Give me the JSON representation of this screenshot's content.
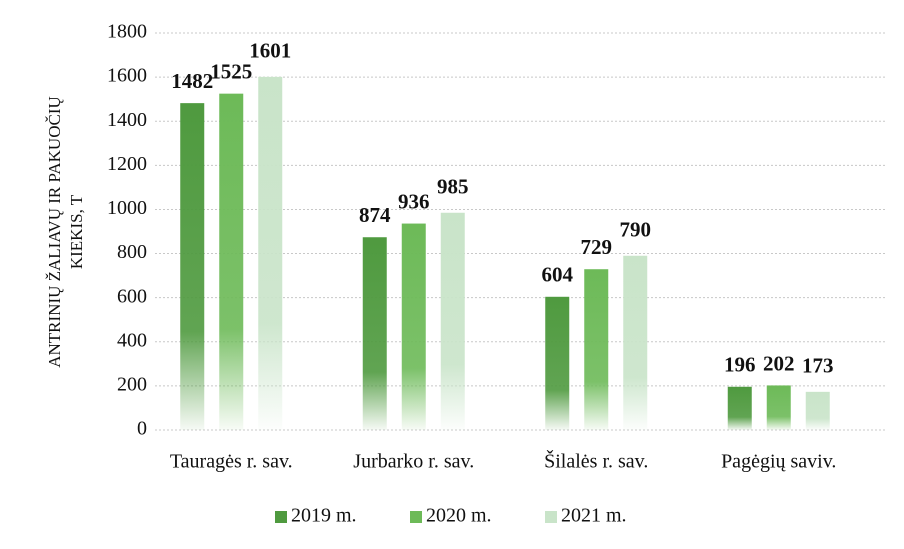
{
  "chart_data": {
    "type": "bar",
    "y_label": [
      "ANTRINIŲ ŽALIAVŲ IR PAKUOČIŲ",
      "KIEKIS, T"
    ],
    "categories": [
      "Tauragės r. sav.",
      "Jurbarko r. sav.",
      "Šilalės r. sav.",
      "Pagėgių saviv."
    ],
    "series": [
      {
        "name": "2019 m.",
        "color": "#4f9a3f",
        "values": [
          1482,
          874,
          604,
          196
        ]
      },
      {
        "name": "2020 m.",
        "color": "#6dba58",
        "values": [
          1525,
          936,
          729,
          202
        ]
      },
      {
        "name": "2021 m.",
        "color": "#c9e4c9",
        "values": [
          1601,
          985,
          790,
          173
        ]
      }
    ],
    "ylim": [
      0,
      1800
    ],
    "yticks": [
      0,
      200,
      400,
      600,
      800,
      1000,
      1200,
      1400,
      1600,
      1800
    ],
    "grid": true,
    "legend": "bottom"
  }
}
